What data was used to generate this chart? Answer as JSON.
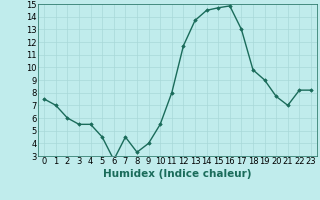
{
  "x": [
    0,
    1,
    2,
    3,
    4,
    5,
    6,
    7,
    8,
    9,
    10,
    11,
    12,
    13,
    14,
    15,
    16,
    17,
    18,
    19,
    20,
    21,
    22,
    23
  ],
  "y": [
    7.5,
    7.0,
    6.0,
    5.5,
    5.5,
    4.5,
    2.7,
    4.5,
    3.3,
    4.0,
    5.5,
    8.0,
    11.7,
    13.7,
    14.5,
    14.7,
    14.85,
    13.0,
    9.8,
    9.0,
    7.7,
    7.0,
    8.2,
    8.2
  ],
  "ylim": [
    3,
    15
  ],
  "yticks": [
    3,
    4,
    5,
    6,
    7,
    8,
    9,
    10,
    11,
    12,
    13,
    14,
    15
  ],
  "xticks": [
    0,
    1,
    2,
    3,
    4,
    5,
    6,
    7,
    8,
    9,
    10,
    11,
    12,
    13,
    14,
    15,
    16,
    17,
    18,
    19,
    20,
    21,
    22,
    23
  ],
  "xlabel": "Humidex (Indice chaleur)",
  "line_color": "#1a6b5a",
  "bg_color": "#c0ecec",
  "grid_color": "#a8d8d8",
  "marker": "D",
  "marker_size": 1.8,
  "line_width": 1.0,
  "xlabel_fontsize": 7.5,
  "tick_fontsize": 6.0
}
